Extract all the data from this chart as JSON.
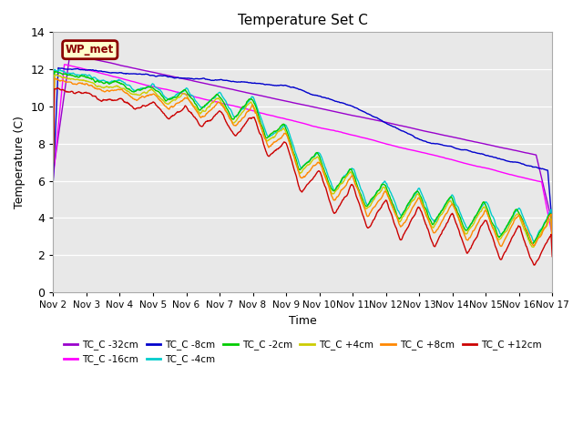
{
  "title": "Temperature Set C",
  "xlabel": "Time",
  "ylabel": "Temperature (C)",
  "ylim": [
    0,
    14
  ],
  "xlim": [
    0,
    15
  ],
  "xtick_labels": [
    "Nov 2",
    "Nov 3",
    "Nov 4",
    "Nov 5",
    "Nov 6",
    "Nov 7",
    "Nov 8",
    "Nov 9",
    "Nov 10",
    "Nov 11",
    "Nov 12",
    "Nov 13",
    "Nov 14",
    "Nov 15",
    "Nov 16",
    "Nov 17"
  ],
  "annotation_text": "WP_met",
  "annotation_bg": "#ffffcc",
  "annotation_border": "#8b0000",
  "annotation_text_color": "#8b0000",
  "bg_color": "#e8e8e8",
  "series": [
    {
      "label": "TC_C -32cm",
      "color": "#9900cc"
    },
    {
      "label": "TC_C -16cm",
      "color": "#ff00ff"
    },
    {
      "label": "TC_C -8cm",
      "color": "#0000cc"
    },
    {
      "label": "TC_C -4cm",
      "color": "#00cccc"
    },
    {
      "label": "TC_C -2cm",
      "color": "#00cc00"
    },
    {
      "label": "TC_C +4cm",
      "color": "#cccc00"
    },
    {
      "label": "TC_C +8cm",
      "color": "#ff8800"
    },
    {
      "label": "TC_C +12cm",
      "color": "#cc0000"
    }
  ]
}
